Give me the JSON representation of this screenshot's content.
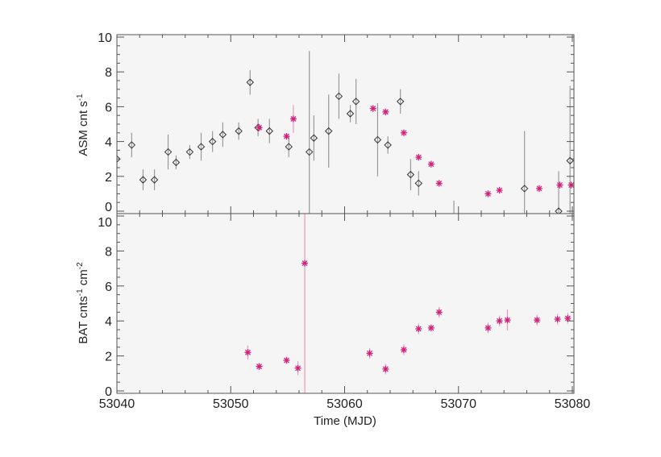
{
  "chart_data": [
    {
      "type": "scatter",
      "panel": "top",
      "ylabel": "ASM cnt s",
      "ylabel_sup": "-1",
      "xlim": [
        53040,
        53080
      ],
      "ylim": [
        0,
        10
      ],
      "yticks": [
        "0",
        "2",
        "4",
        "6",
        "8",
        "10"
      ],
      "series": [
        {
          "marker": "diamond",
          "color": "#333333",
          "errcolor": "#999999",
          "points": [
            [
              53040.0,
              3.0,
              0.6
            ],
            [
              53041.3,
              3.8,
              0.7
            ],
            [
              53042.3,
              1.8,
              0.6
            ],
            [
              53043.3,
              1.8,
              0.6
            ],
            [
              53044.5,
              3.4,
              1.0
            ],
            [
              53045.2,
              2.8,
              0.4
            ],
            [
              53046.4,
              3.4,
              0.4
            ],
            [
              53047.4,
              3.7,
              0.8
            ],
            [
              53048.4,
              4.0,
              0.6
            ],
            [
              53049.3,
              4.4,
              0.7
            ],
            [
              53050.7,
              4.6,
              0.5
            ],
            [
              53051.7,
              7.4,
              0.7
            ],
            [
              53052.4,
              4.8,
              0.5
            ],
            [
              53053.4,
              4.6,
              0.7
            ],
            [
              53055.1,
              3.7,
              0.6
            ],
            [
              53056.9,
              3.4,
              5.8
            ],
            [
              53057.3,
              4.2,
              1.3
            ],
            [
              53058.6,
              4.6,
              2.1
            ],
            [
              53059.5,
              6.6,
              1.3
            ],
            [
              53060.5,
              5.6,
              0.5
            ],
            [
              53061.0,
              6.3,
              1.3
            ],
            [
              53062.9,
              4.1,
              2.1
            ],
            [
              53063.8,
              3.8,
              0.5
            ],
            [
              53064.9,
              6.3,
              0.7
            ],
            [
              53065.8,
              2.1,
              0.9
            ],
            [
              53066.5,
              1.6,
              0.7
            ],
            [
              53069.6,
              -0.4,
              1.0
            ],
            [
              53075.8,
              1.3,
              3.3
            ],
            [
              53078.8,
              0.0,
              2.3
            ],
            [
              53079.8,
              2.9,
              4.3
            ]
          ]
        },
        {
          "marker": "asterisk",
          "color": "#d4207a",
          "errcolor": "#e79ab8",
          "points": [
            [
              53052.5,
              4.8,
              0.2
            ],
            [
              53054.9,
              4.3,
              0.2
            ],
            [
              53055.5,
              5.3,
              0.8
            ],
            [
              53062.5,
              5.9,
              0.2
            ],
            [
              53063.6,
              5.7,
              0.2
            ],
            [
              53065.2,
              4.5,
              0.2
            ],
            [
              53066.5,
              3.1,
              0.2
            ],
            [
              53067.6,
              2.7,
              0.2
            ],
            [
              53068.3,
              1.6,
              0.2
            ],
            [
              53072.6,
              1.0,
              0.2
            ],
            [
              53073.6,
              1.2,
              0.2
            ],
            [
              53077.1,
              1.3,
              0.2
            ],
            [
              53078.9,
              1.5,
              0.2
            ],
            [
              53079.9,
              1.5,
              0.2
            ]
          ]
        }
      ]
    },
    {
      "type": "scatter",
      "panel": "bottom",
      "ylabel": "BAT cnts",
      "ylabel_sup1": "-1",
      "ylabel_mid": " cm",
      "ylabel_sup2": "-2",
      "xlabel": "Time (MJD)",
      "xlim": [
        53040,
        53080
      ],
      "ylim": [
        0,
        10
      ],
      "xticks": [
        "53040",
        "53050",
        "53060",
        "53070",
        "53080"
      ],
      "yticks": [
        "0",
        "2",
        "4",
        "6",
        "8",
        "10"
      ],
      "series": [
        {
          "marker": "asterisk",
          "color": "#d4207a",
          "errcolor": "#e79ab8",
          "points": [
            [
              53051.5,
              2.2,
              0.4
            ],
            [
              53052.5,
              1.4,
              0.2
            ],
            [
              53054.9,
              1.75,
              0.2
            ],
            [
              53055.9,
              1.3,
              0.4
            ],
            [
              53056.5,
              7.3,
              12
            ],
            [
              53062.2,
              2.15,
              0.3
            ],
            [
              53063.6,
              1.25,
              0.3
            ],
            [
              53065.2,
              2.35,
              0.3
            ],
            [
              53066.5,
              3.55,
              0.3
            ],
            [
              53067.6,
              3.6,
              0.2
            ],
            [
              53068.3,
              4.5,
              0.3
            ],
            [
              53072.6,
              3.6,
              0.3
            ],
            [
              53073.6,
              4.0,
              0.3
            ],
            [
              53074.3,
              4.05,
              0.6
            ],
            [
              53076.9,
              4.05,
              0.3
            ],
            [
              53078.7,
              4.1,
              0.3
            ],
            [
              53079.6,
              4.15,
              0.3
            ]
          ]
        }
      ]
    }
  ]
}
